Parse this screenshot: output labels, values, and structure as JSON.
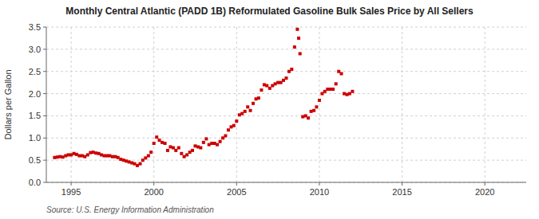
{
  "chart_data": {
    "type": "scatter",
    "title": "Monthly Central Atlantic (PADD 1B) Reformulated Gasoline Bulk Sales Price by All Sellers",
    "ylabel": "Dollars per Gallon",
    "annotations": [
      "Source: U.S. Energy Information Administration"
    ],
    "color": "#cc0000",
    "marker": "square",
    "grid": true,
    "xlim": [
      1993.5,
      2022.5
    ],
    "ylim": [
      0.0,
      3.5
    ],
    "xticks": [
      1995,
      2000,
      2005,
      2010,
      2015,
      2020
    ],
    "yticks": [
      {
        "value": 0.0,
        "label": "0.0"
      },
      0.5,
      {
        "value": 1.0,
        "label": "1.0"
      },
      1.5,
      {
        "value": 2.0,
        "label": "2.0"
      },
      2.5,
      {
        "value": 3.0,
        "label": "3.0"
      },
      3.5
    ],
    "x": [
      1994.0,
      1994.17,
      1994.33,
      1994.5,
      1994.67,
      1994.83,
      1995.0,
      1995.17,
      1995.33,
      1995.5,
      1995.67,
      1995.83,
      1996.0,
      1996.17,
      1996.33,
      1996.5,
      1996.67,
      1996.83,
      1997.0,
      1997.17,
      1997.33,
      1997.5,
      1997.67,
      1997.83,
      1998.0,
      1998.17,
      1998.33,
      1998.5,
      1998.67,
      1998.83,
      1999.0,
      1999.17,
      1999.33,
      1999.5,
      1999.67,
      1999.83,
      2000.0,
      2000.17,
      2000.33,
      2000.5,
      2000.67,
      2000.83,
      2001.0,
      2001.17,
      2001.33,
      2001.5,
      2001.67,
      2001.83,
      2002.0,
      2002.17,
      2002.33,
      2002.5,
      2002.67,
      2002.83,
      2003.0,
      2003.17,
      2003.33,
      2003.5,
      2003.67,
      2003.83,
      2004.0,
      2004.17,
      2004.33,
      2004.5,
      2004.67,
      2004.83,
      2005.0,
      2005.17,
      2005.33,
      2005.5,
      2005.67,
      2005.83,
      2006.0,
      2006.17,
      2006.33,
      2006.5,
      2006.67,
      2006.83,
      2007.0,
      2007.17,
      2007.33,
      2007.5,
      2007.67,
      2007.83,
      2008.0,
      2008.17,
      2008.33,
      2008.5,
      2008.67,
      2008.75,
      2008.83,
      2009.0,
      2009.17,
      2009.33,
      2009.5,
      2009.67,
      2009.83,
      2010.0,
      2010.17,
      2010.33,
      2010.5,
      2010.67,
      2010.83,
      2011.0,
      2011.17,
      2011.33,
      2011.5,
      2011.67,
      2011.83,
      2012.0
    ],
    "values": [
      0.56,
      0.57,
      0.58,
      0.57,
      0.6,
      0.62,
      0.62,
      0.65,
      0.63,
      0.6,
      0.6,
      0.58,
      0.62,
      0.67,
      0.68,
      0.66,
      0.65,
      0.62,
      0.6,
      0.6,
      0.6,
      0.58,
      0.58,
      0.56,
      0.52,
      0.5,
      0.48,
      0.46,
      0.44,
      0.42,
      0.38,
      0.42,
      0.5,
      0.55,
      0.6,
      0.68,
      0.88,
      1.02,
      0.95,
      0.9,
      0.88,
      0.72,
      0.8,
      0.78,
      0.72,
      0.78,
      0.65,
      0.58,
      0.62,
      0.68,
      0.72,
      0.82,
      0.8,
      0.78,
      0.9,
      0.98,
      0.85,
      0.88,
      0.88,
      0.85,
      0.92,
      1.0,
      1.05,
      1.18,
      1.25,
      1.28,
      1.38,
      1.52,
      1.55,
      1.6,
      1.7,
      1.62,
      1.78,
      1.88,
      1.9,
      2.08,
      2.2,
      2.18,
      2.12,
      2.18,
      2.22,
      2.25,
      2.25,
      2.3,
      2.35,
      2.5,
      2.55,
      3.05,
      3.45,
      3.25,
      2.9,
      1.48,
      1.5,
      1.45,
      1.6,
      1.62,
      1.7,
      1.85,
      2.0,
      2.05,
      2.1,
      2.1,
      2.1,
      2.22,
      2.5,
      2.45,
      2.0,
      1.98,
      2.0,
      2.05
    ]
  }
}
